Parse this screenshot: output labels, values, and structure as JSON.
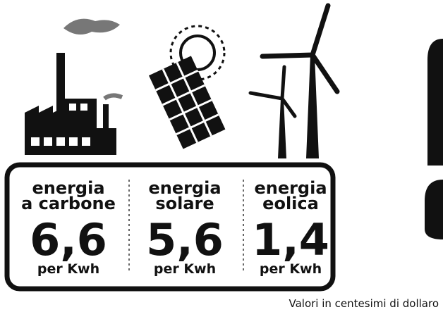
{
  "panels": [
    {
      "label": [
        "energia",
        "a carbone"
      ],
      "value": "6,6",
      "unit": "per Kwh"
    },
    {
      "label": [
        "energia",
        "solare"
      ],
      "value": "5,6",
      "unit": "per Kwh"
    },
    {
      "label": [
        "energia",
        "eolica"
      ],
      "value": "1,4",
      "unit": "per Kwh"
    }
  ],
  "footnote": "Valori in centesimi di dollaro"
}
